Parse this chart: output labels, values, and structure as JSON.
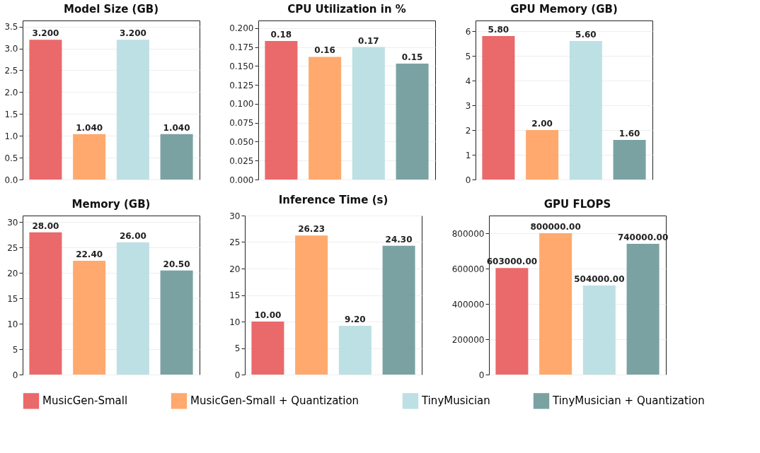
{
  "chart_data": [
    {
      "type": "bar",
      "title": "Model Size (GB)",
      "categories": [
        null
      ],
      "ylim": [
        0,
        3.64
      ],
      "yticks": [
        {
          "value": 0,
          "label": "0.0"
        },
        {
          "value": 0.5,
          "label": "0.5"
        },
        {
          "value": 1,
          "label": "1.0"
        },
        {
          "value": 1.5,
          "label": "1.5"
        },
        {
          "value": 2,
          "label": "2.0"
        },
        {
          "value": 2.5,
          "label": "2.5"
        },
        {
          "value": 3,
          "label": "3.0"
        },
        {
          "value": 3.5,
          "label": "3.5"
        }
      ],
      "grid": "y",
      "tick_labels": "y",
      "legend": "bottom",
      "series": [
        {
          "name": "MusicGen-Small",
          "color": "#e8595a",
          "values": [
            3.2
          ],
          "value_labels": [
            "3.200"
          ]
        },
        {
          "name": "MusicGen-Small + Quantization",
          "color": "#ffa05e",
          "values": [
            1.04
          ],
          "value_labels": [
            "1.040"
          ]
        },
        {
          "name": "TinyMusician",
          "color": "#b6dde1",
          "values": [
            3.2
          ],
          "value_labels": [
            "3.200"
          ]
        },
        {
          "name": "TinyMusician + Quantization",
          "color": "#6b9899",
          "values": [
            1.04
          ],
          "value_labels": [
            "1.040"
          ]
        }
      ]
    },
    {
      "type": "bar",
      "title": "CPU Utilization in %",
      "categories": [
        null
      ],
      "ylim": [
        0,
        0.21
      ],
      "yticks": [
        {
          "value": 0,
          "label": "0.000"
        },
        {
          "value": 0.025,
          "label": "0.025"
        },
        {
          "value": 0.05,
          "label": "0.050"
        },
        {
          "value": 0.075,
          "label": "0.075"
        },
        {
          "value": 0.1,
          "label": "0.100"
        },
        {
          "value": 0.125,
          "label": "0.125"
        },
        {
          "value": 0.15,
          "label": "0.150"
        },
        {
          "value": 0.175,
          "label": "0.175"
        },
        {
          "value": 0.2,
          "label": "0.200"
        }
      ],
      "grid": "y",
      "tick_labels": "y",
      "legend": "bottom",
      "series": [
        {
          "name": "MusicGen-Small",
          "color": "#e8595a",
          "values": [
            0.183
          ],
          "value_labels": [
            "0.18"
          ]
        },
        {
          "name": "MusicGen-Small + Quantization",
          "color": "#ffa05e",
          "values": [
            0.162
          ],
          "value_labels": [
            "0.16"
          ]
        },
        {
          "name": "TinyMusician",
          "color": "#b6dde1",
          "values": [
            0.175
          ],
          "value_labels": [
            "0.17"
          ]
        },
        {
          "name": "TinyMusician + Quantization",
          "color": "#6b9899",
          "values": [
            0.153
          ],
          "value_labels": [
            "0.15"
          ]
        }
      ]
    },
    {
      "type": "bar",
      "title": "GPU Memory (GB)",
      "categories": [
        null
      ],
      "ylim": [
        0,
        6.43
      ],
      "yticks": [
        0,
        1,
        2,
        3,
        4,
        5,
        6
      ],
      "grid": "y",
      "tick_labels": "y",
      "legend": "bottom",
      "series": [
        {
          "name": "MusicGen-Small",
          "color": "#e8595a",
          "values": [
            5.8
          ],
          "value_labels": [
            "5.80"
          ]
        },
        {
          "name": "MusicGen-Small + Quantization",
          "color": "#ffa05e",
          "values": [
            2.0
          ],
          "value_labels": [
            "2.00"
          ]
        },
        {
          "name": "TinyMusician",
          "color": "#b6dde1",
          "values": [
            5.6
          ],
          "value_labels": [
            "5.60"
          ]
        },
        {
          "name": "TinyMusician + Quantization",
          "color": "#6b9899",
          "values": [
            1.6
          ],
          "value_labels": [
            "1.60"
          ]
        }
      ]
    },
    {
      "type": "bar",
      "title": "Memory (GB)",
      "categories": [
        null
      ],
      "ylim": [
        0,
        31.3
      ],
      "yticks": [
        0,
        5,
        10,
        15,
        20,
        25,
        30
      ],
      "grid": "y",
      "tick_labels": "y",
      "legend": "bottom",
      "series": [
        {
          "name": "MusicGen-Small",
          "color": "#e8595a",
          "values": [
            28.0
          ],
          "value_labels": [
            "28.00"
          ]
        },
        {
          "name": "MusicGen-Small + Quantization",
          "color": "#ffa05e",
          "values": [
            22.4
          ],
          "value_labels": [
            "22.40"
          ]
        },
        {
          "name": "TinyMusician",
          "color": "#b6dde1",
          "values": [
            26.0
          ],
          "value_labels": [
            "26.00"
          ]
        },
        {
          "name": "TinyMusician + Quantization",
          "color": "#6b9899",
          "values": [
            20.5
          ],
          "value_labels": [
            "20.50"
          ]
        }
      ]
    },
    {
      "type": "bar",
      "title": "Inference Time (s)",
      "categories": [
        null
      ],
      "ylim": [
        0,
        30
      ],
      "yticks": [
        0,
        5,
        10,
        15,
        20,
        25,
        30
      ],
      "grid": "y",
      "tick_labels": "y",
      "legend": "bottom",
      "series": [
        {
          "name": "MusicGen-Small",
          "color": "#e8595a",
          "values": [
            10.0
          ],
          "value_labels": [
            "10.00"
          ]
        },
        {
          "name": "MusicGen-Small + Quantization",
          "color": "#ffa05e",
          "values": [
            26.23
          ],
          "value_labels": [
            "26.23"
          ]
        },
        {
          "name": "TinyMusician",
          "color": "#b6dde1",
          "values": [
            9.2
          ],
          "value_labels": [
            "9.20"
          ]
        },
        {
          "name": "TinyMusician + Quantization",
          "color": "#6b9899",
          "values": [
            24.3
          ],
          "value_labels": [
            "24.30"
          ]
        }
      ]
    },
    {
      "type": "bar",
      "title": "GPU FLOPS",
      "categories": [
        null
      ],
      "ylim": [
        0,
        900000
      ],
      "yticks": [
        0,
        200000,
        400000,
        600000,
        800000
      ],
      "grid": "y",
      "tick_labels": "y",
      "legend": "bottom",
      "series": [
        {
          "name": "MusicGen-Small",
          "color": "#e8595a",
          "values": [
            603000
          ],
          "value_labels": [
            "603000.00"
          ]
        },
        {
          "name": "MusicGen-Small + Quantization",
          "color": "#ffa05e",
          "values": [
            800000
          ],
          "value_labels": [
            "800000.00"
          ]
        },
        {
          "name": "TinyMusician",
          "color": "#b6dde1",
          "values": [
            504000
          ],
          "value_labels": [
            "504000.00"
          ]
        },
        {
          "name": "TinyMusician + Quantization",
          "color": "#6b9899",
          "values": [
            740000
          ],
          "value_labels": [
            "740000.00"
          ]
        }
      ]
    }
  ]
}
